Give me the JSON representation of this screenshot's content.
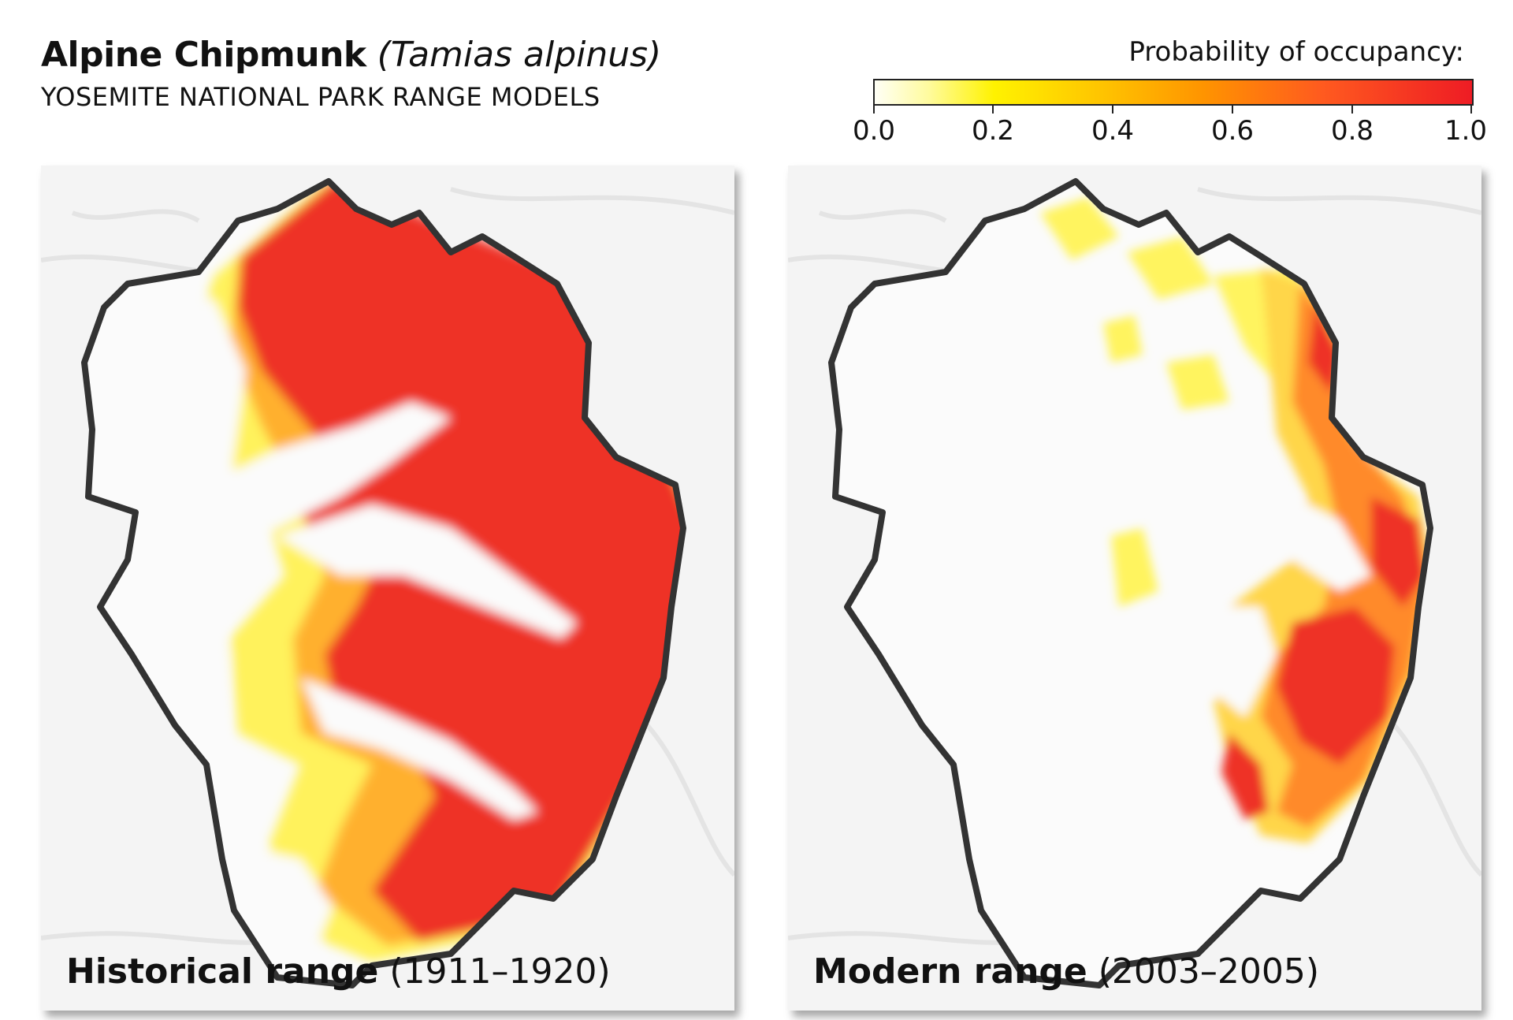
{
  "header": {
    "common_name": "Alpine Chipmunk",
    "scientific_name": "(Tamias alpinus)",
    "subtitle": "YOSEMITE NATIONAL PARK RANGE MODELS"
  },
  "legend": {
    "title": "Probability of occupancy:",
    "ticks": [
      "0.0",
      "0.2",
      "0.4",
      "0.6",
      "0.8",
      "1.0"
    ],
    "colors": {
      "low": "#fffff6",
      "mid_low": "#fff200",
      "mid": "#ffc400",
      "mid_high": "#ff9400",
      "high": "#ee1c24"
    }
  },
  "panels": [
    {
      "name": "Historical range",
      "years": "(1911–1920)"
    },
    {
      "name": "Modern range",
      "years": "(2003–2005)"
    }
  ],
  "style": {
    "boundary_color": "#333333",
    "background_relief": "#f3f3f3",
    "park_fill": "#ffffff"
  }
}
